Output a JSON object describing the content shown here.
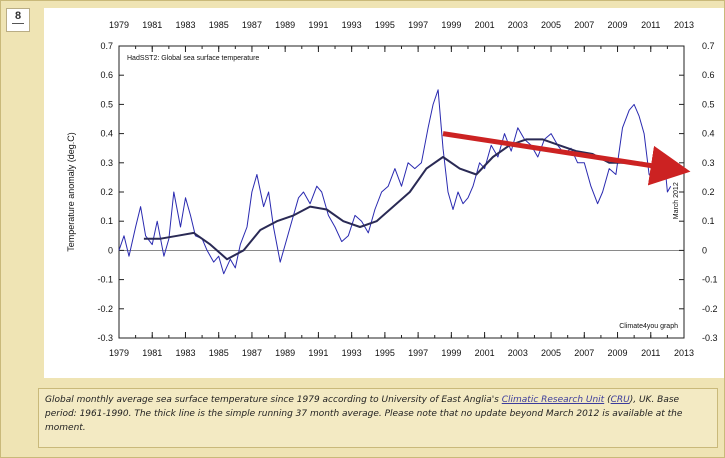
{
  "slide_number": "8",
  "caption": {
    "before_link": "Global monthly average sea surface temperature since 1979 according to University of East Anglia's ",
    "link1": "Climatic Research Unit",
    "between": " (",
    "link2": "CRU",
    "after": "), UK. Base period: 1961-1990. The thick line is the simple running 37 month average. Please note that no update beyond March 2012 is available at the moment."
  },
  "chart_data": {
    "type": "line",
    "title": "HadSST2: Global sea surface temperature",
    "ylabel": "Temperature anomaly (deg.C)",
    "right_annotation": "March 2012",
    "credit": "Climate4you graph",
    "xlim": [
      1979,
      2013
    ],
    "ylim": [
      -0.3,
      0.7
    ],
    "x_tick_labels": [
      "1979",
      "1981",
      "1983",
      "1985",
      "1987",
      "1989",
      "1991",
      "1993",
      "1995",
      "1997",
      "1999",
      "2001",
      "2003",
      "2005",
      "2007",
      "2009",
      "2011",
      "2013"
    ],
    "y_tick_labels": [
      "0.7",
      "0.6",
      "0.5",
      "0.4",
      "0.3",
      "0.2",
      "0.1",
      "0",
      "-0.1",
      "-0.2",
      "-0.3"
    ],
    "series": [
      {
        "style": "thin",
        "color": "#2a2ab0",
        "x": [
          1979.0,
          1979.3,
          1979.6,
          1980.0,
          1980.3,
          1980.6,
          1981.0,
          1981.3,
          1981.7,
          1982.0,
          1982.3,
          1982.7,
          1983.0,
          1983.3,
          1983.6,
          1984.0,
          1984.3,
          1984.7,
          1985.0,
          1985.3,
          1985.7,
          1986.0,
          1986.3,
          1986.7,
          1987.0,
          1987.3,
          1987.7,
          1988.0,
          1988.3,
          1988.7,
          1989.0,
          1989.4,
          1989.8,
          1990.1,
          1990.5,
          1990.9,
          1991.2,
          1991.6,
          1992.0,
          1992.4,
          1992.8,
          1993.2,
          1993.6,
          1994.0,
          1994.4,
          1994.8,
          1995.2,
          1995.6,
          1996.0,
          1996.4,
          1996.8,
          1997.2,
          1997.6,
          1997.9,
          1998.2,
          1998.5,
          1998.8,
          1999.1,
          1999.4,
          1999.7,
          2000.0,
          2000.3,
          2000.7,
          2001.0,
          2001.4,
          2001.8,
          2002.2,
          2002.6,
          2003.0,
          2003.4,
          2003.8,
          2004.2,
          2004.6,
          2005.0,
          2005.4,
          2005.8,
          2006.2,
          2006.6,
          2007.0,
          2007.4,
          2007.8,
          2008.1,
          2008.5,
          2008.9,
          2009.3,
          2009.7,
          2010.0,
          2010.3,
          2010.6,
          2010.9,
          2011.2,
          2011.5,
          2011.8,
          2012.0,
          2012.2
        ],
        "y": [
          0.0,
          0.05,
          -0.02,
          0.08,
          0.15,
          0.05,
          0.02,
          0.1,
          -0.02,
          0.04,
          0.2,
          0.08,
          0.18,
          0.12,
          0.05,
          0.04,
          0.0,
          -0.04,
          -0.02,
          -0.08,
          -0.03,
          -0.06,
          0.02,
          0.08,
          0.2,
          0.26,
          0.15,
          0.2,
          0.08,
          -0.04,
          0.02,
          0.1,
          0.18,
          0.2,
          0.16,
          0.22,
          0.2,
          0.12,
          0.08,
          0.03,
          0.05,
          0.12,
          0.1,
          0.06,
          0.14,
          0.2,
          0.22,
          0.28,
          0.22,
          0.3,
          0.28,
          0.3,
          0.42,
          0.5,
          0.55,
          0.35,
          0.2,
          0.14,
          0.2,
          0.16,
          0.18,
          0.22,
          0.3,
          0.28,
          0.36,
          0.32,
          0.4,
          0.34,
          0.42,
          0.38,
          0.36,
          0.32,
          0.38,
          0.4,
          0.36,
          0.33,
          0.35,
          0.3,
          0.3,
          0.22,
          0.16,
          0.2,
          0.28,
          0.26,
          0.42,
          0.48,
          0.5,
          0.46,
          0.4,
          0.26,
          0.24,
          0.3,
          0.32,
          0.2,
          0.22
        ]
      },
      {
        "style": "thick",
        "color": "#2a2a55",
        "x": [
          1980.5,
          1981.5,
          1982.5,
          1983.5,
          1984.5,
          1985.5,
          1986.5,
          1987.5,
          1988.5,
          1989.5,
          1990.5,
          1991.5,
          1992.5,
          1993.5,
          1994.5,
          1995.5,
          1996.5,
          1997.5,
          1998.5,
          1999.5,
          2000.5,
          2001.5,
          2002.5,
          2003.5,
          2004.5,
          2005.5,
          2006.5,
          2007.5,
          2008.5,
          2009.5,
          2010.5
        ],
        "y": [
          0.04,
          0.04,
          0.05,
          0.06,
          0.02,
          -0.03,
          0.0,
          0.07,
          0.1,
          0.12,
          0.15,
          0.14,
          0.1,
          0.08,
          0.1,
          0.15,
          0.2,
          0.28,
          0.32,
          0.28,
          0.26,
          0.32,
          0.36,
          0.38,
          0.38,
          0.36,
          0.34,
          0.33,
          0.3,
          0.3,
          0.3
        ]
      }
    ],
    "trend_arrow": {
      "color": "#cc2222",
      "x": [
        1998.5,
        2012.2
      ],
      "y": [
        0.4,
        0.28
      ]
    }
  }
}
